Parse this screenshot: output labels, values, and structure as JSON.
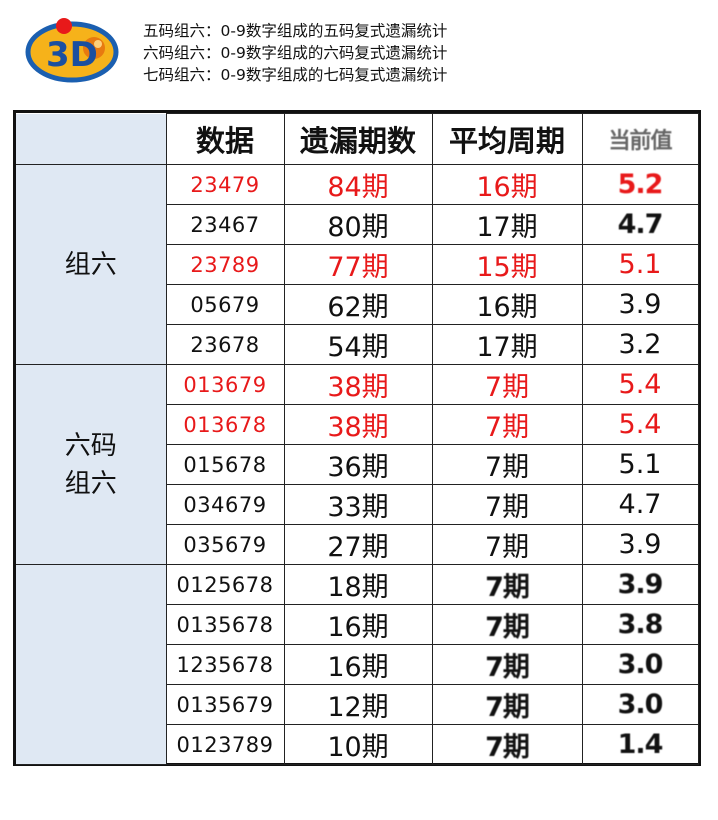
{
  "header": {
    "lines": [
      "五码组六：0-9数字组成的五码复式遗漏统计",
      "六码组六：0-9数字组成的六码复式遗漏统计",
      "七码组六：0-9数字组成的七码复式遗漏统计"
    ],
    "logo_text": "3D"
  },
  "table": {
    "headers": [
      "数据",
      "遗漏期数",
      "平均周期",
      "当前值"
    ],
    "groups": [
      {
        "label": "组六",
        "rows": [
          {
            "data": "23479",
            "miss": "84期",
            "avg": "16期",
            "ratio": "5.2",
            "color": "#e8191a"
          },
          {
            "data": "23467",
            "miss": "80期",
            "avg": "17期",
            "ratio": "4.7",
            "color": "#111111"
          },
          {
            "data": "23789",
            "miss": "77期",
            "avg": "15期",
            "ratio": "5.1",
            "color": "#e8191a"
          },
          {
            "data": "05679",
            "miss": "62期",
            "avg": "16期",
            "ratio": "3.9",
            "color": "#111111"
          },
          {
            "data": "23678",
            "miss": "54期",
            "avg": "17期",
            "ratio": "3.2",
            "color": "#111111"
          }
        ]
      },
      {
        "label": "六码\n组六",
        "rows": [
          {
            "data": "013679",
            "miss": "38期",
            "avg": "7期",
            "ratio": "5.4",
            "color": "#e8191a"
          },
          {
            "data": "013678",
            "miss": "38期",
            "avg": "7期",
            "ratio": "5.4",
            "color": "#e8191a"
          },
          {
            "data": "015678",
            "miss": "36期",
            "avg": "7期",
            "ratio": "5.1",
            "color": "#111111"
          },
          {
            "data": "034679",
            "miss": "33期",
            "avg": "7期",
            "ratio": "4.7",
            "color": "#111111"
          },
          {
            "data": "035679",
            "miss": "27期",
            "avg": "7期",
            "ratio": "3.9",
            "color": "#111111"
          }
        ]
      },
      {
        "label": "",
        "rows": [
          {
            "data": "0125678",
            "miss": "18期",
            "avg": "7期",
            "ratio": "3.9",
            "color": "#111111"
          },
          {
            "data": "0135678",
            "miss": "16期",
            "avg": "7期",
            "ratio": "3.8",
            "color": "#111111"
          },
          {
            "data": "1235678",
            "miss": "16期",
            "avg": "7期",
            "ratio": "3.0",
            "color": "#111111"
          },
          {
            "data": "0135679",
            "miss": "12期",
            "avg": "7期",
            "ratio": "3.0",
            "color": "#111111"
          },
          {
            "data": "0123789",
            "miss": "10期",
            "avg": "7期",
            "ratio": "1.4",
            "color": "#111111"
          }
        ]
      }
    ]
  }
}
